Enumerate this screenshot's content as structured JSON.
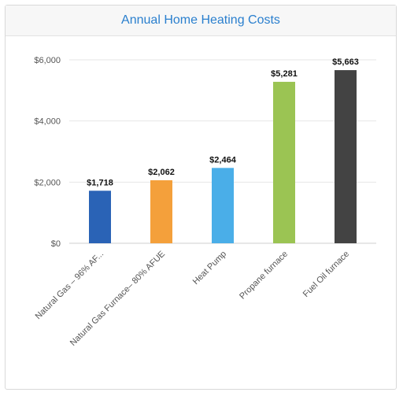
{
  "chart_data": {
    "type": "bar",
    "title": "Annual Home Heating Costs",
    "categories": [
      "Natural Gas – 96% AF...",
      "Natural Gas Furnace– 80% AFUE",
      "Heat Pump",
      "Propane furnace",
      "Fuel Oil furnace"
    ],
    "values": [
      1718,
      2062,
      2464,
      5281,
      5663
    ],
    "data_labels": [
      "$1,718",
      "$2,062",
      "$2,464",
      "$5,281",
      "$5,663"
    ],
    "colors": [
      "#2a63b6",
      "#f4a03b",
      "#4aaee8",
      "#9bc453",
      "#434343"
    ],
    "ylim": [
      0,
      6000
    ],
    "yticks": [
      0,
      2000,
      4000,
      6000
    ],
    "ytick_labels": [
      "$0",
      "$2,000",
      "$4,000",
      "$6,000"
    ],
    "grid": true,
    "legend": "none"
  }
}
